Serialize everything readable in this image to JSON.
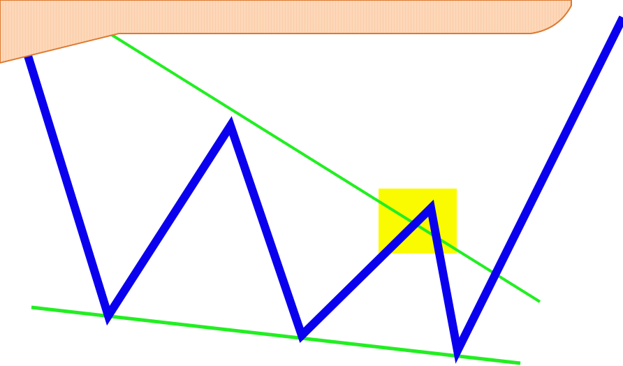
{
  "colors": {
    "zigzag": "#0a00ee",
    "trendline": "#22ee22",
    "highlight": "#fafa00",
    "callout_fill": "#fdd7b8",
    "callout_stroke": "#dd7a30"
  },
  "callout": {
    "text": ""
  },
  "diagram": {
    "description_icons": [
      "zigzag-price-line",
      "upper-trendline",
      "lower-trendline",
      "breakout-highlight-box"
    ]
  }
}
